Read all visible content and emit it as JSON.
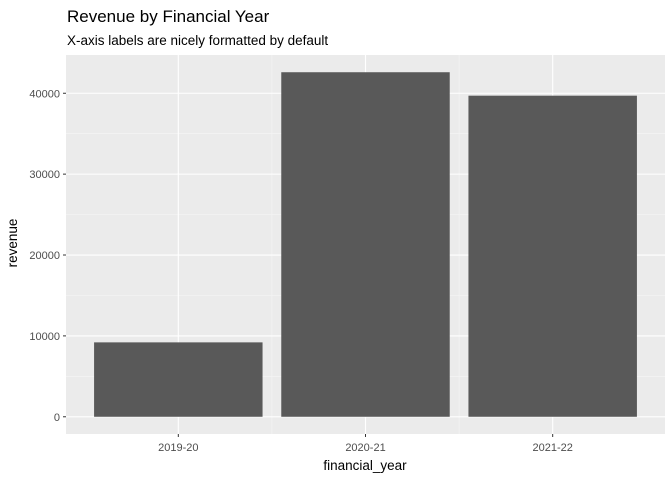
{
  "chart_data": {
    "type": "bar",
    "title": "Revenue by Financial Year",
    "subtitle": "X-axis labels are nicely formatted by default",
    "xlabel": "financial_year",
    "ylabel": "revenue",
    "categories": [
      "2019-20",
      "2020-21",
      "2021-22"
    ],
    "values": [
      9200,
      42600,
      39700
    ],
    "ylim": [
      -2130,
      44730
    ],
    "yticks": [
      0,
      10000,
      20000,
      30000,
      40000
    ],
    "ytick_labels": [
      "0",
      "10000",
      "20000",
      "30000",
      "40000"
    ],
    "grid": true,
    "legend": "none",
    "colors": {
      "panel_background": "#ebebeb",
      "grid_major": "#ffffff",
      "grid_minor": "#f5f5f5",
      "bar_fill": "#595959",
      "tick_text": "#4d4d4d"
    }
  }
}
